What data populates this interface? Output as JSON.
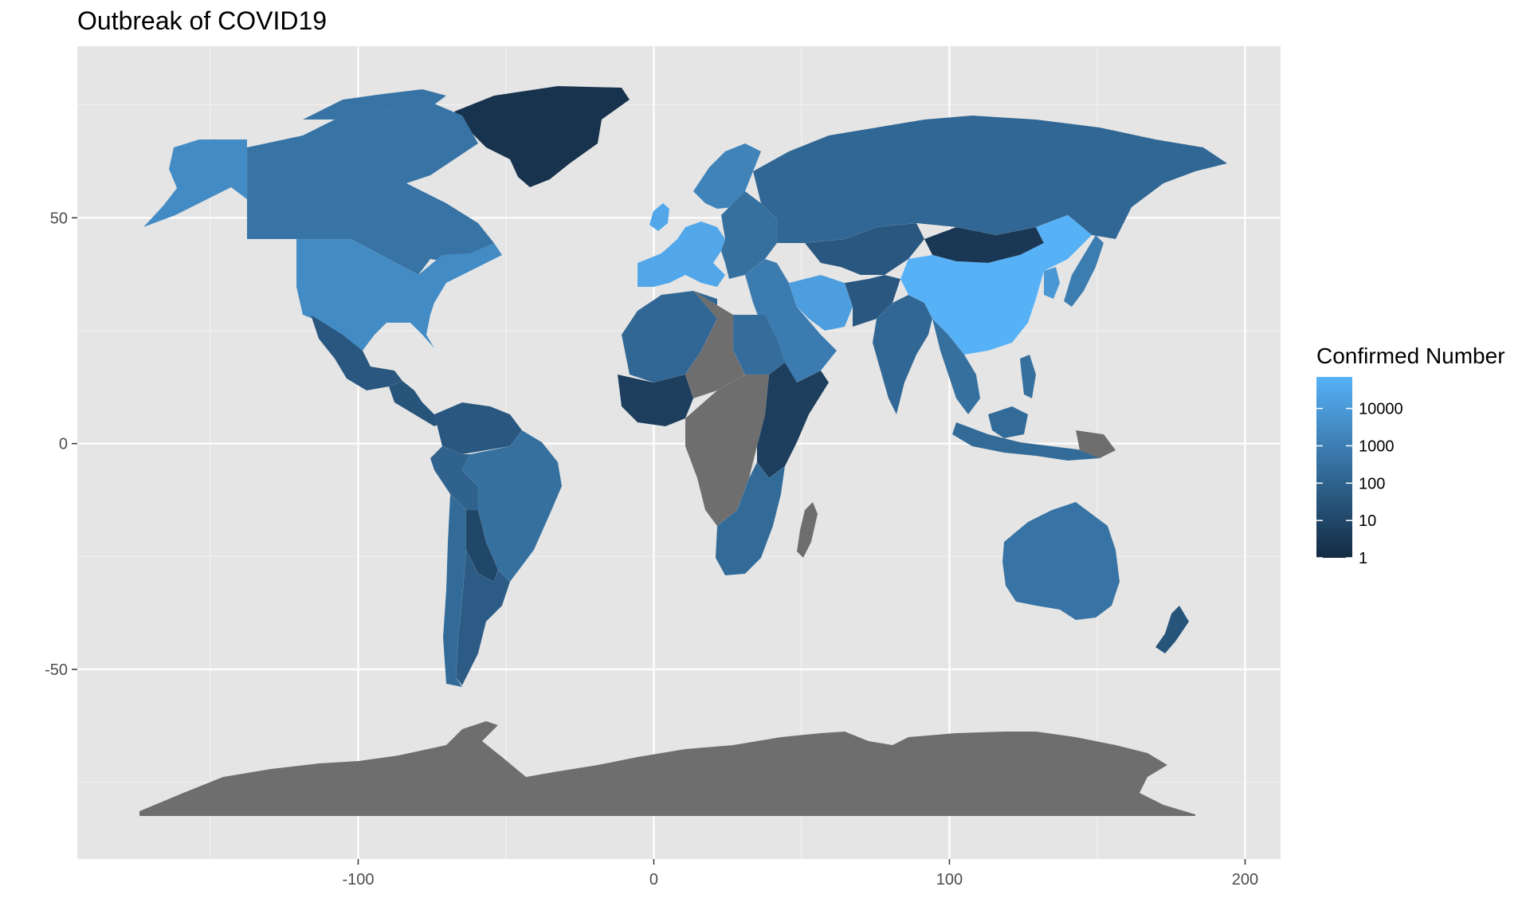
{
  "title": "Outbreak of COVID19",
  "chart_data": {
    "type": "choropleth",
    "x_ticks": [
      -100,
      0,
      100,
      200
    ],
    "y_ticks": [
      -50,
      0,
      50
    ],
    "xlim": [
      -195,
      212
    ],
    "ylim": [
      -92,
      88
    ],
    "grid": true,
    "legend": {
      "title": "Confirmed Number",
      "scale": "log10",
      "breaks": [
        1,
        10,
        100,
        1000,
        10000
      ],
      "break_labels": [
        "1",
        "10",
        "100",
        "1000",
        "10000"
      ],
      "range": [
        1,
        70000
      ],
      "color_low": "#132B43",
      "color_high": "#56B1F7",
      "placement": "right"
    },
    "missing_color": "#6E6E6E",
    "regions": [
      {
        "id": "greenland",
        "value": 2
      },
      {
        "id": "canada",
        "value": 400
      },
      {
        "id": "alaska",
        "value": 3000
      },
      {
        "id": "usa",
        "value": 3000
      },
      {
        "id": "mexico",
        "value": 40
      },
      {
        "id": "central-america",
        "value": 30
      },
      {
        "id": "venezuela-colombia",
        "value": 40
      },
      {
        "id": "brazil",
        "value": 300
      },
      {
        "id": "peru",
        "value": 100
      },
      {
        "id": "bolivia",
        "value": 10
      },
      {
        "id": "argentina",
        "value": 60
      },
      {
        "id": "chile",
        "value": 200
      },
      {
        "id": "west-europe",
        "value": 30000
      },
      {
        "id": "scandinavia",
        "value": 1500
      },
      {
        "id": "east-europe",
        "value": 300
      },
      {
        "id": "russia",
        "value": 150
      },
      {
        "id": "kazakhstan",
        "value": 40
      },
      {
        "id": "mongolia",
        "value": 3
      },
      {
        "id": "china",
        "value": 70000
      },
      {
        "id": "iran",
        "value": 15000
      },
      {
        "id": "middle-east",
        "value": 800
      },
      {
        "id": "india",
        "value": 150
      },
      {
        "id": "southeast-asia",
        "value": 300
      },
      {
        "id": "indonesia",
        "value": 200
      },
      {
        "id": "japan",
        "value": 900
      },
      {
        "id": "korea",
        "value": 8000
      },
      {
        "id": "australia",
        "value": 400
      },
      {
        "id": "new-zealand",
        "value": 30
      },
      {
        "id": "north-africa",
        "value": 150
      },
      {
        "id": "egypt",
        "value": 250
      },
      {
        "id": "west-africa",
        "value": 5
      },
      {
        "id": "central-africa",
        "value": null
      },
      {
        "id": "east-africa",
        "value": 5
      },
      {
        "id": "southern-africa",
        "value": 200
      },
      {
        "id": "madagascar",
        "value": null
      },
      {
        "id": "antarctica",
        "value": null
      }
    ]
  }
}
